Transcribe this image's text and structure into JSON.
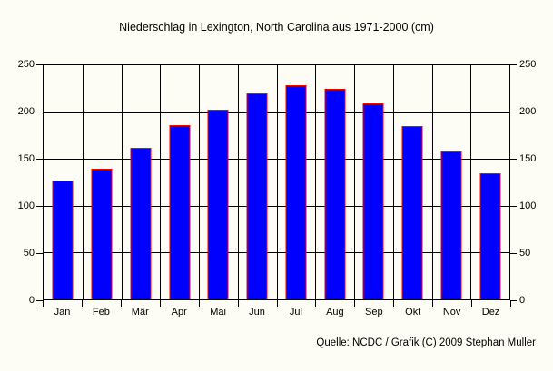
{
  "title": "Niederschlag in Lexington, North Carolina aus 1971-2000 (cm)",
  "source_note": "Quelle: NCDC / Grafik (C) 2009 Stephan Muller",
  "chart_data": {
    "type": "bar",
    "title": "Niederschlag in Lexington, North Carolina aus 1971-2000 (cm)",
    "categories": [
      "Jan",
      "Feb",
      "Mär",
      "Apr",
      "Mai",
      "Jun",
      "Jul",
      "Aug",
      "Sep",
      "Okt",
      "Nov",
      "Dez"
    ],
    "values": [
      127,
      140,
      162,
      186,
      203,
      220,
      229,
      225,
      209,
      185,
      158,
      135
    ],
    "xlabel": "",
    "ylabel": "",
    "ylim": [
      0,
      250
    ],
    "yticks": [
      0,
      50,
      100,
      150,
      200,
      250
    ],
    "grid": true,
    "legend": false,
    "dual_y_axis": true,
    "annotation": "Quelle: NCDC / Grafik (C) 2009 Stephan Muller"
  },
  "colors": {
    "background": "#fdfdf5",
    "bar_fill": "#0000ff",
    "bar_border": "#ff0000",
    "grid": "#000000",
    "text": "#000000"
  }
}
